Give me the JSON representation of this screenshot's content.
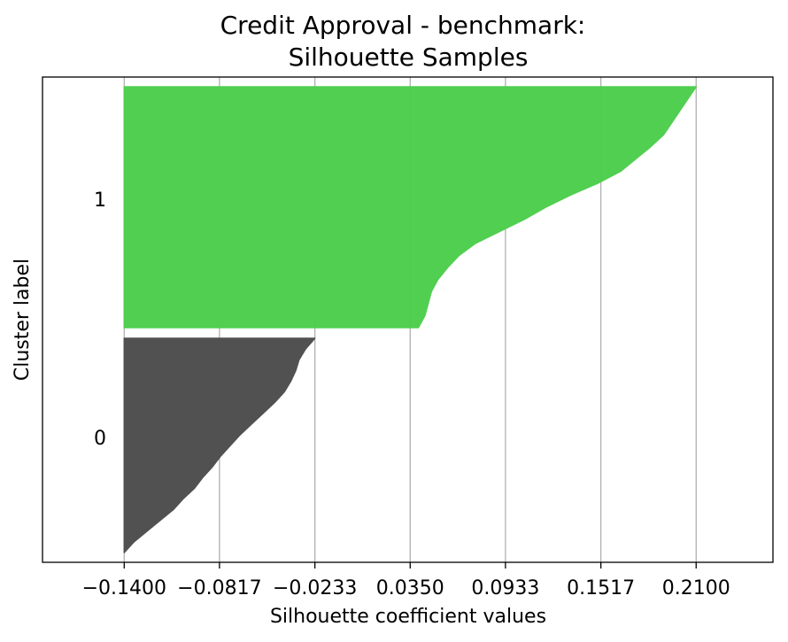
{
  "chart_data": {
    "type": "area",
    "title": [
      "Credit Approval - benchmark:",
      "Silhouette Samples"
    ],
    "xlabel": "Silhouette coefficient values",
    "ylabel": "Cluster label",
    "xlim": [
      -0.19,
      0.257
    ],
    "x_ticks": [
      -0.14,
      -0.0817,
      -0.0233,
      0.035,
      0.0933,
      0.1517,
      0.21
    ],
    "x_tick_labels": [
      "−0.1400",
      "−0.0817",
      "−0.0233",
      "0.0350",
      "0.0933",
      "0.1517",
      "0.2100"
    ],
    "grid": "vertical",
    "series": [
      {
        "name": "0",
        "color": "#4c4c4c",
        "samples_sorted_top_to_bottom": [
          -0.0233,
          -0.029,
          -0.033,
          -0.035,
          -0.038,
          -0.042,
          -0.048,
          -0.055,
          -0.062,
          -0.069,
          -0.075,
          -0.081,
          -0.086,
          -0.092,
          -0.097,
          -0.104,
          -0.11,
          -0.118,
          -0.126,
          -0.134,
          -0.14
        ]
      },
      {
        "name": "1",
        "color": "#4cce4c",
        "samples_sorted_top_to_bottom": [
          0.21,
          0.205,
          0.2,
          0.195,
          0.19,
          0.182,
          0.173,
          0.164,
          0.15,
          0.133,
          0.118,
          0.105,
          0.09,
          0.075,
          0.065,
          0.058,
          0.052,
          0.048,
          0.046,
          0.044,
          0.04
        ]
      }
    ],
    "cluster_labels": [
      "0",
      "1"
    ]
  }
}
